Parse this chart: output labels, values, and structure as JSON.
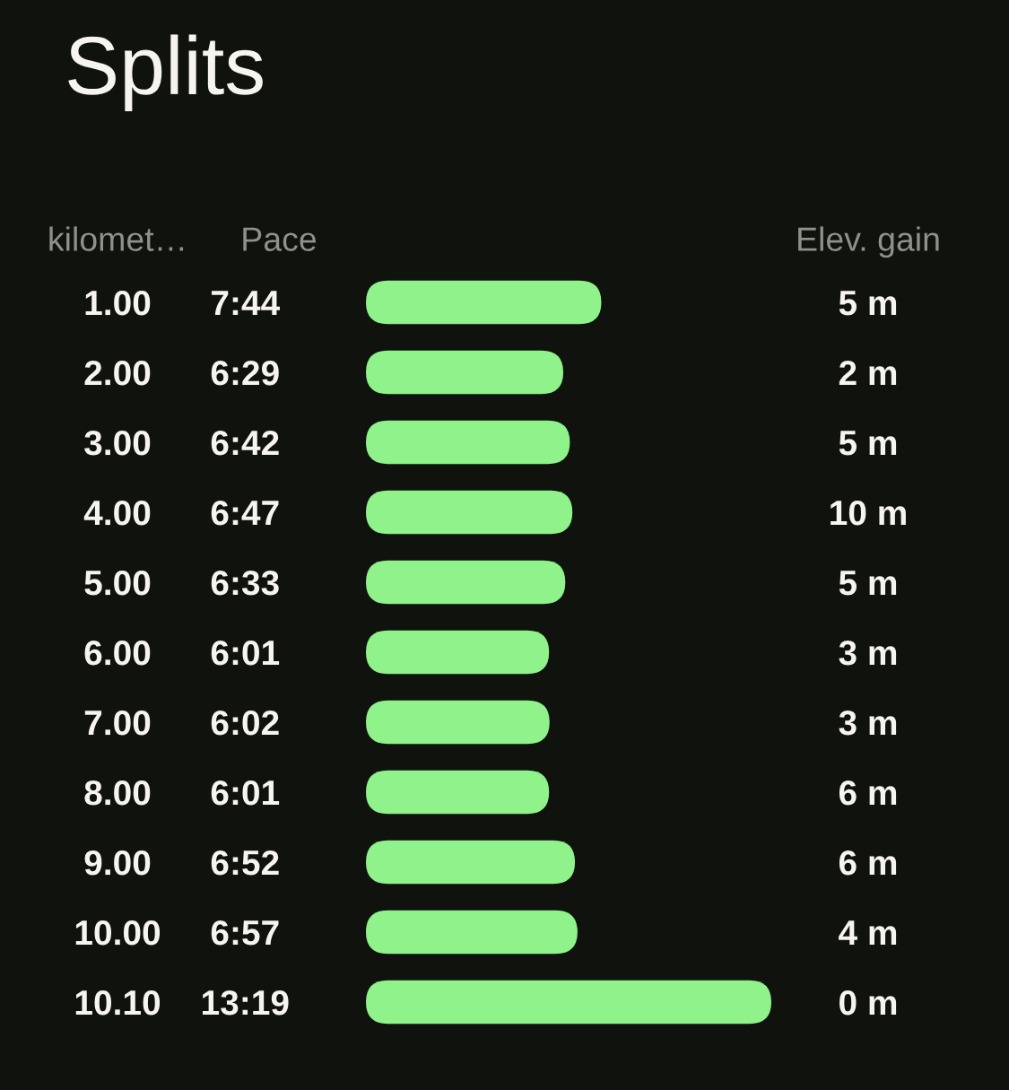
{
  "chart_data": {
    "type": "bar",
    "orientation": "horizontal",
    "title": "Splits",
    "ylabel": "kilomet…",
    "xlabel": "Pace",
    "categories": [
      "1.00",
      "2.00",
      "3.00",
      "4.00",
      "5.00",
      "6.00",
      "7.00",
      "8.00",
      "9.00",
      "10.00",
      "10.10"
    ],
    "values": [
      7.733,
      6.483,
      6.7,
      6.783,
      6.55,
      6.017,
      6.033,
      6.017,
      6.867,
      6.95,
      13.317
    ],
    "value_labels": [
      "7:44",
      "6:29",
      "6:42",
      "6:47",
      "6:33",
      "6:01",
      "6:02",
      "6:01",
      "6:52",
      "6:57",
      "13:19"
    ],
    "color": "#8ff28b",
    "annotations": [
      "Elev. gain",
      "5 m",
      "2 m",
      "5 m",
      "10 m",
      "5 m",
      "3 m",
      "3 m",
      "6 m",
      "6 m",
      "4 m",
      "0 m"
    ]
  }
}
